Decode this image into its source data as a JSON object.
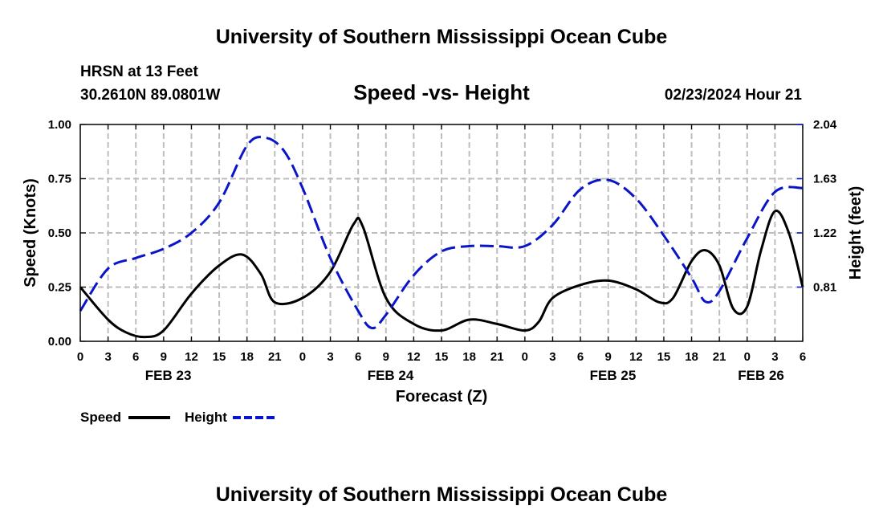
{
  "header": {
    "title": "University of Southern Mississippi Ocean Cube",
    "station": "HRSN at 13 Feet",
    "coords": "30.2610N  89.0801W",
    "subtitle": "Speed -vs- Height",
    "datetime": "02/23/2024 Hour 21"
  },
  "footer": {
    "title": "University of Southern Mississippi Ocean Cube"
  },
  "colors": {
    "speed": "#000000",
    "height": "#0a14c8",
    "grid": "#bdbdbd"
  },
  "chart_data": {
    "type": "line",
    "title": "Speed -vs- Height",
    "xlabel": "Forecast (Z)",
    "ylabel": "Speed (Knots)",
    "y2label": "Height (feet)",
    "xlim": [
      0,
      78
    ],
    "ylim": [
      0,
      1.0
    ],
    "y2lim": [
      0.4,
      2.04
    ],
    "x_tick_hours": [
      0,
      3,
      6,
      9,
      12,
      15,
      18,
      21,
      24,
      27,
      30,
      33,
      36,
      39,
      42,
      45,
      48,
      51,
      54,
      57,
      60,
      63,
      66,
      69,
      72,
      75,
      78
    ],
    "x_tick_labels": [
      "0",
      "3",
      "6",
      "9",
      "12",
      "15",
      "18",
      "21",
      "0",
      "3",
      "6",
      "9",
      "12",
      "15",
      "18",
      "21",
      "0",
      "3",
      "6",
      "9",
      "12",
      "15",
      "18",
      "21",
      "0",
      "3",
      "6"
    ],
    "date_labels": [
      {
        "label": "FEB 23",
        "hour": 9.5
      },
      {
        "label": "FEB 24",
        "hour": 33.5
      },
      {
        "label": "FEB 25",
        "hour": 57.5
      },
      {
        "label": "FEB 26",
        "hour": 73.5
      }
    ],
    "y_ticks": [
      0,
      0.25,
      0.5,
      0.75,
      1.0
    ],
    "y_tick_labels": [
      "0.00",
      "0.25",
      "0.50",
      "0.75",
      "1.00"
    ],
    "y2_ticks": [
      0.81,
      1.22,
      1.63,
      2.04
    ],
    "y2_tick_labels": [
      "0.81",
      "1.22",
      "1.63",
      "2.04"
    ],
    "legend": [
      {
        "name": "Speed",
        "style": "solid"
      },
      {
        "name": "Height",
        "style": "dashed"
      }
    ],
    "series": [
      {
        "name": "Speed",
        "axis": "left",
        "unit": "knots",
        "x": [
          0,
          3,
          5,
          7,
          9,
          12,
          15,
          17.5,
          19.5,
          21,
          24,
          27,
          29.5,
          30.5,
          33,
          36,
          39,
          42,
          45,
          48,
          49.5,
          51,
          54,
          57,
          60,
          62.5,
          64,
          66,
          67.5,
          69,
          70.5,
          72,
          73.5,
          75,
          76.5,
          78
        ],
        "values": [
          0.25,
          0.1,
          0.04,
          0.02,
          0.05,
          0.22,
          0.35,
          0.4,
          0.31,
          0.18,
          0.2,
          0.32,
          0.54,
          0.53,
          0.2,
          0.08,
          0.05,
          0.1,
          0.08,
          0.05,
          0.09,
          0.2,
          0.26,
          0.28,
          0.24,
          0.18,
          0.2,
          0.37,
          0.42,
          0.35,
          0.15,
          0.16,
          0.42,
          0.6,
          0.5,
          0.25
        ]
      },
      {
        "name": "Height",
        "axis": "right",
        "unit": "feet",
        "x": [
          0,
          3,
          6,
          9,
          12,
          15,
          18,
          20,
          22,
          24,
          27,
          30,
          31.5,
          33,
          36,
          39,
          42,
          45,
          48,
          51,
          54,
          57,
          60,
          63,
          66,
          67.5,
          69,
          72,
          75,
          78
        ],
        "values": [
          0.63,
          0.95,
          1.03,
          1.1,
          1.22,
          1.45,
          1.88,
          1.94,
          1.84,
          1.56,
          1.03,
          0.63,
          0.5,
          0.6,
          0.9,
          1.08,
          1.12,
          1.12,
          1.12,
          1.28,
          1.55,
          1.62,
          1.48,
          1.2,
          0.88,
          0.7,
          0.78,
          1.18,
          1.53,
          1.56
        ]
      }
    ]
  }
}
